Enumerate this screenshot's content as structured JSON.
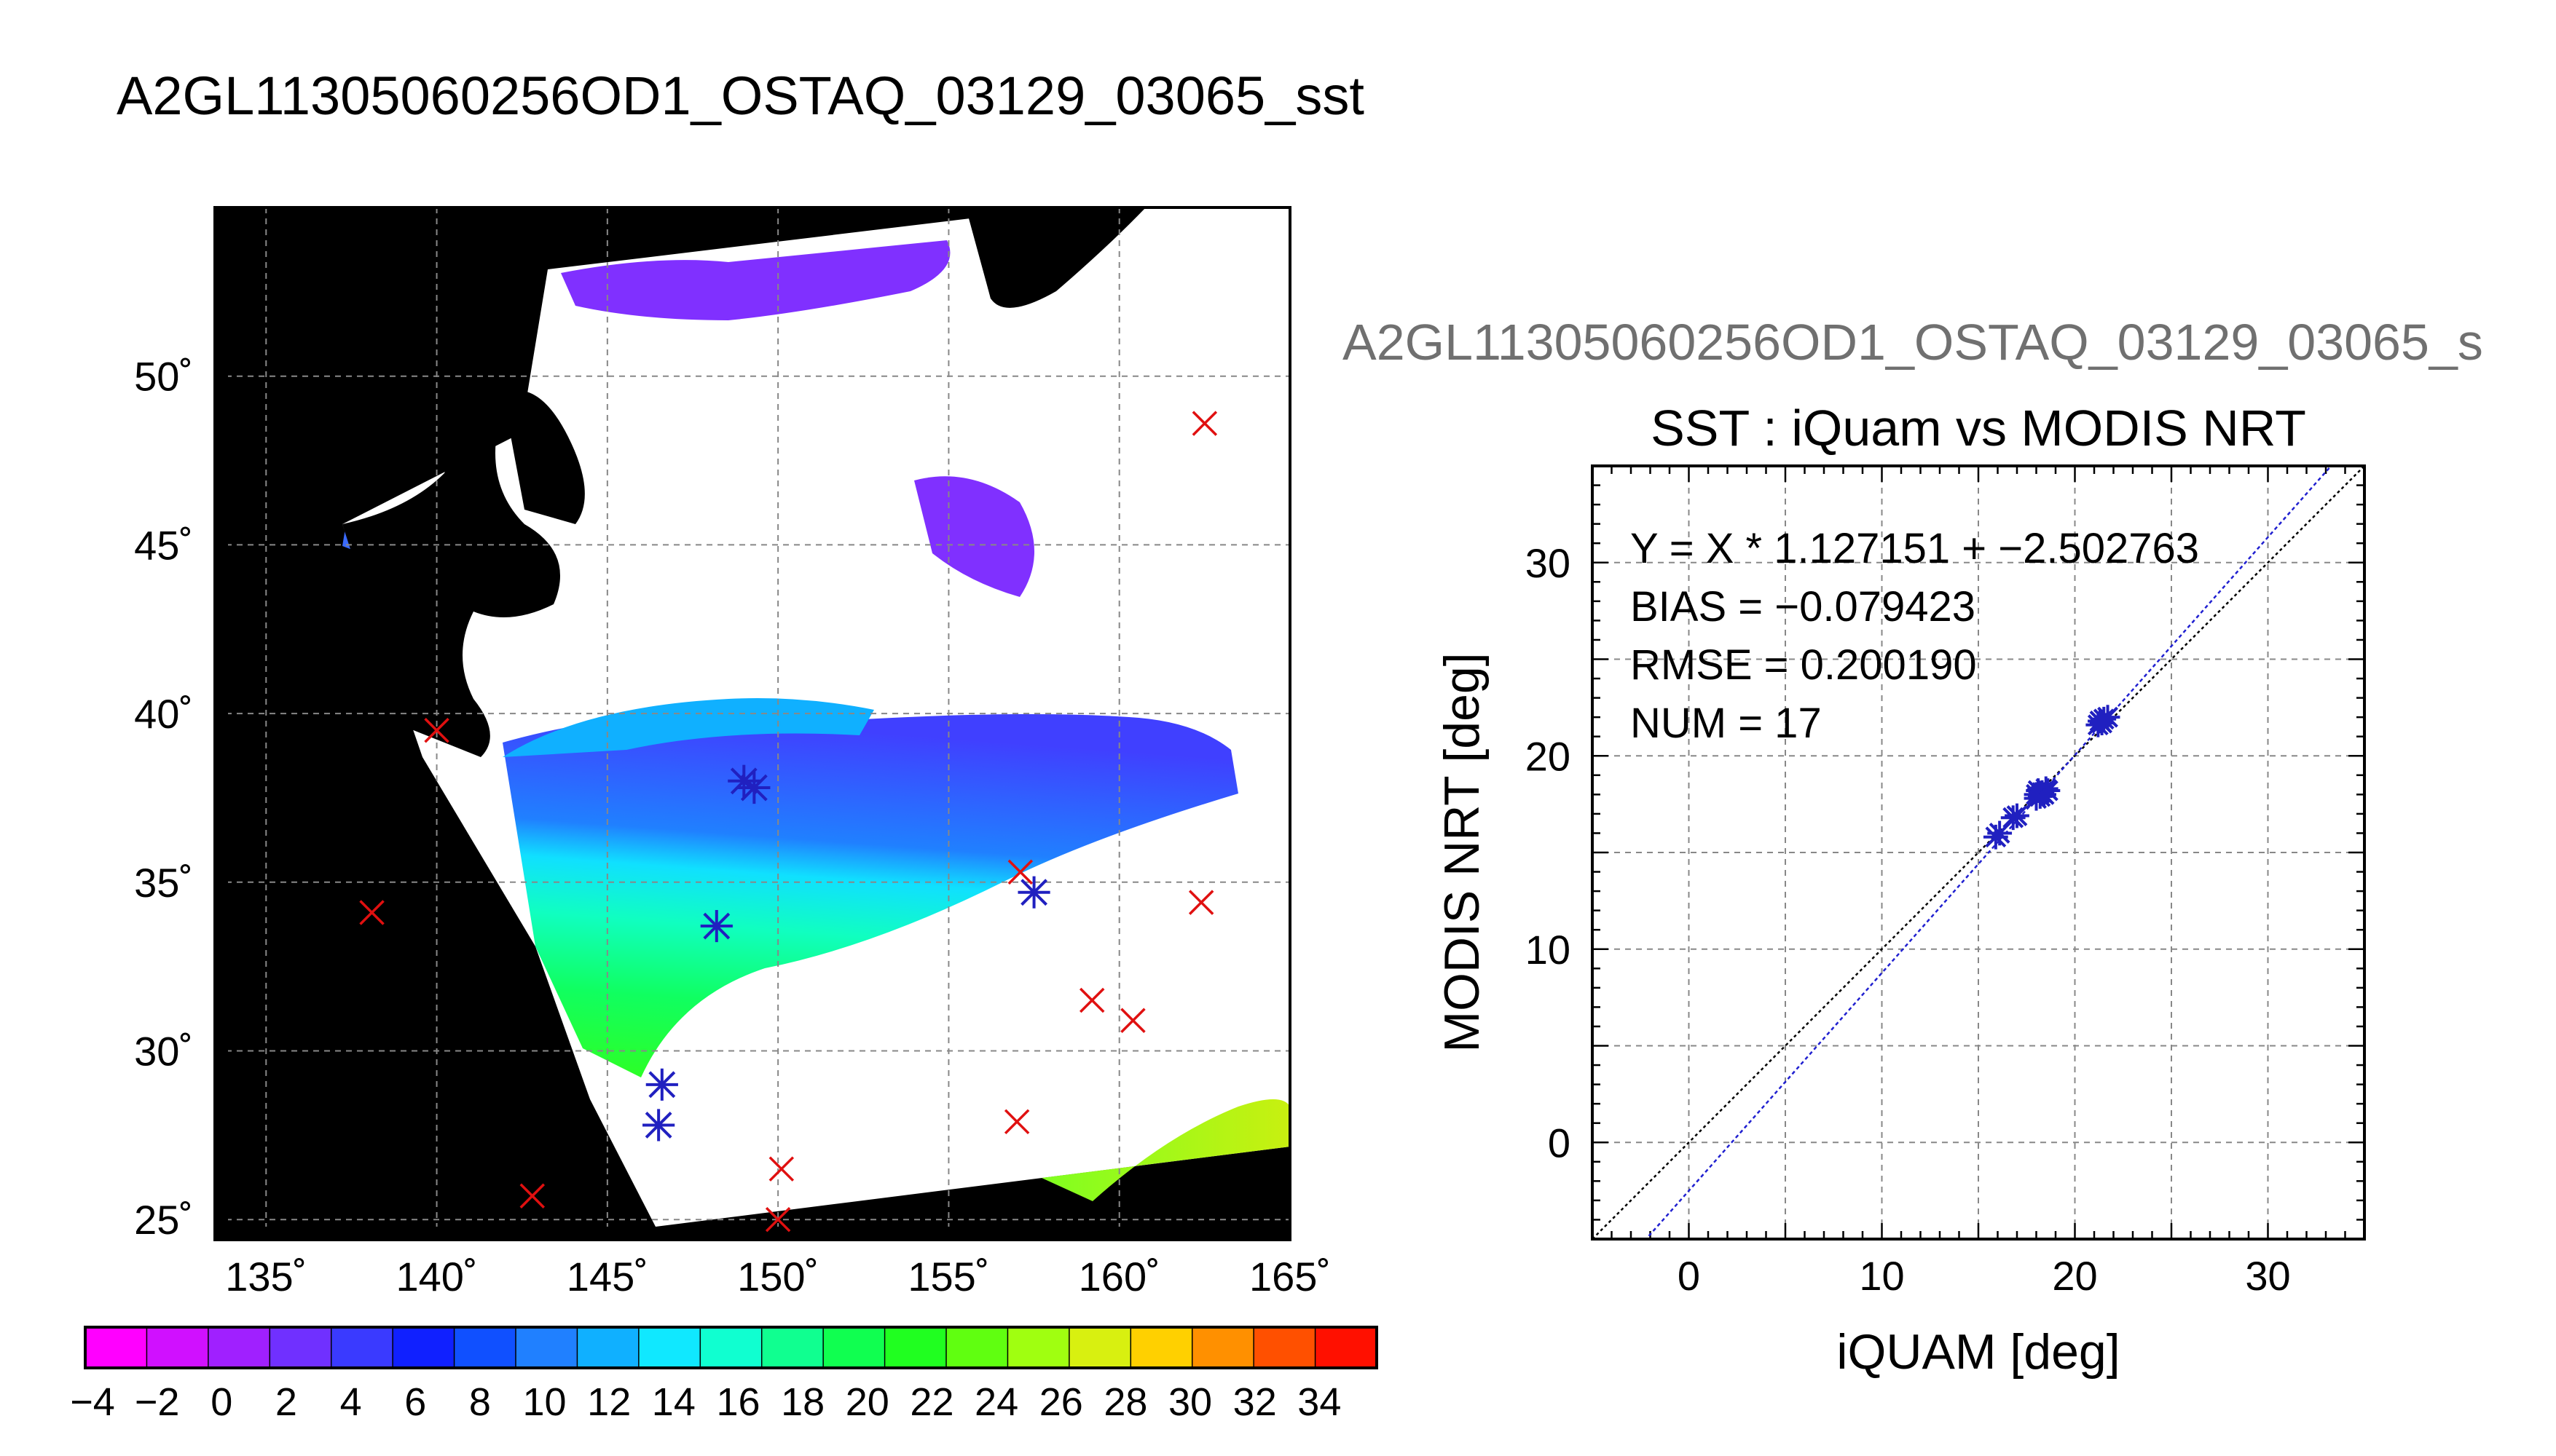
{
  "main_title": "A2GL11305060256OD1_OSTAQ_03129_03065_sst",
  "secondary_title": "A2GL11305060256OD1_OSTAQ_03129_03065_s",
  "colors": {
    "match_x": "#e01010",
    "match_star": "#2020c0",
    "land": "#000000",
    "cloud": "#ffffff",
    "grid": "#888888",
    "fit_line": "#2020d0",
    "one_to_one": "#000000"
  },
  "chart_data": [
    {
      "type": "map",
      "title": "",
      "lon_ticks": [
        "135˚",
        "140˚",
        "145˚",
        "150˚",
        "155˚",
        "160˚",
        "165˚"
      ],
      "lon_values": [
        135,
        140,
        145,
        150,
        155,
        160,
        165
      ],
      "lat_ticks": [
        "25˚",
        "30˚",
        "35˚",
        "40˚",
        "45˚",
        "50˚"
      ],
      "lat_values": [
        25,
        30,
        35,
        40,
        45,
        50
      ],
      "lon_range": [
        133.5,
        165
      ],
      "lat_range": [
        24.4,
        55
      ],
      "grid": true,
      "iquam_no_match": [
        {
          "lon": 138.1,
          "lat": 34.1
        },
        {
          "lon": 140.0,
          "lat": 39.5
        },
        {
          "lon": 142.8,
          "lat": 25.7
        },
        {
          "lon": 150.1,
          "lat": 26.5
        },
        {
          "lon": 150.0,
          "lat": 25.0
        },
        {
          "lon": 157.0,
          "lat": 27.9
        },
        {
          "lon": 159.2,
          "lat": 31.5
        },
        {
          "lon": 160.4,
          "lat": 30.9
        },
        {
          "lon": 162.4,
          "lat": 34.4
        },
        {
          "lon": 162.5,
          "lat": 48.6
        },
        {
          "lon": 157.1,
          "lat": 35.3
        }
      ],
      "matchups": [
        {
          "lon": 146.6,
          "lat": 29.0
        },
        {
          "lon": 146.5,
          "lat": 27.8
        },
        {
          "lon": 148.2,
          "lat": 33.7
        },
        {
          "lon": 149.0,
          "lat": 38.0
        },
        {
          "lon": 149.3,
          "lat": 37.8
        },
        {
          "lon": 157.5,
          "lat": 34.7
        }
      ]
    },
    {
      "type": "colorbar",
      "tick_labels": [
        "−4",
        "−2",
        "0",
        "2",
        "4",
        "6",
        "8",
        "10",
        "12",
        "14",
        "16",
        "18",
        "20",
        "22",
        "24",
        "26",
        "28",
        "30",
        "32",
        "34"
      ],
      "range": [
        -4,
        36
      ],
      "colors": [
        "#ff00ff",
        "#d010ff",
        "#a020ff",
        "#7030ff",
        "#3a3aff",
        "#1020ff",
        "#1050ff",
        "#2080ff",
        "#10b0ff",
        "#10e8ff",
        "#10ffd0",
        "#10ff90",
        "#10ff50",
        "#20ff20",
        "#60ff10",
        "#a0ff10",
        "#d8f010",
        "#ffd000",
        "#ff9000",
        "#ff5000",
        "#ff1000"
      ]
    },
    {
      "type": "scatter",
      "title": "SST : iQuam vs MODIS NRT",
      "xlabel": "iQUAM [deg]",
      "ylabel": "MODIS NRT [deg]",
      "xlim": [
        -5,
        35
      ],
      "ylim": [
        -5,
        35
      ],
      "x_ticks": [
        "0",
        "10",
        "20",
        "30"
      ],
      "y_ticks": [
        "0",
        "10",
        "20",
        "30"
      ],
      "tick_values": [
        0,
        10,
        20,
        30
      ],
      "grid": true,
      "annotations": [
        "Y = X * 1.127151 + −2.502763",
        "BIAS = −0.079423",
        "RMSE = 0.200190",
        "NUM = 17"
      ],
      "fit": {
        "slope": 1.127151,
        "intercept": -2.502763
      },
      "series": [
        {
          "points": [
            [
              15.9,
              15.8
            ],
            [
              16.1,
              16.0
            ],
            [
              16.8,
              16.8
            ],
            [
              17.0,
              16.9
            ],
            [
              18.0,
              18.0
            ],
            [
              18.1,
              18.2
            ],
            [
              18.2,
              17.9
            ],
            [
              18.3,
              18.1
            ],
            [
              18.5,
              18.3
            ],
            [
              18.4,
              18.0
            ],
            [
              18.6,
              18.2
            ],
            [
              18.0,
              17.8
            ],
            [
              21.2,
              21.6
            ],
            [
              21.3,
              21.8
            ],
            [
              21.5,
              21.9
            ],
            [
              21.7,
              22.0
            ],
            [
              21.4,
              21.7
            ]
          ]
        }
      ]
    }
  ]
}
